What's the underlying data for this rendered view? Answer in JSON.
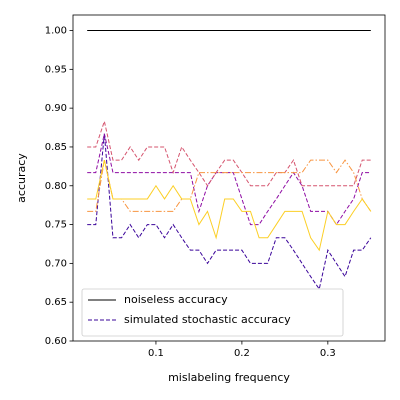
{
  "chart_data": {
    "type": "line",
    "x": [
      0.02,
      0.03,
      0.04,
      0.05,
      0.06,
      0.07,
      0.08,
      0.09,
      0.1,
      0.11,
      0.12,
      0.13,
      0.14,
      0.15,
      0.16,
      0.17,
      0.18,
      0.19,
      0.2,
      0.21,
      0.22,
      0.23,
      0.24,
      0.25,
      0.26,
      0.27,
      0.28,
      0.29,
      0.3,
      0.31,
      0.32,
      0.33,
      0.34,
      0.35
    ],
    "series": [
      {
        "name": "noiseless accuracy",
        "color": "#000000",
        "linestyle": "solid",
        "values": [
          1,
          1,
          1,
          1,
          1,
          1,
          1,
          1,
          1,
          1,
          1,
          1,
          1,
          1,
          1,
          1,
          1,
          1,
          1,
          1,
          1,
          1,
          1,
          1,
          1,
          1,
          1,
          1,
          1,
          1,
          1,
          1,
          1,
          1
        ]
      },
      {
        "name": "simulated stochastic accuracy",
        "color": "#3a049a",
        "linestyle": "dashed",
        "values": [
          0.75,
          0.75,
          0.867,
          0.733,
          0.733,
          0.75,
          0.733,
          0.75,
          0.75,
          0.733,
          0.75,
          0.733,
          0.717,
          0.717,
          0.7,
          0.717,
          0.717,
          0.717,
          0.717,
          0.7,
          0.7,
          0.7,
          0.733,
          0.733,
          0.717,
          0.7,
          0.683,
          0.667,
          0.717,
          0.7,
          0.683,
          0.717,
          0.717,
          0.733
        ]
      },
      {
        "color": "#8f0da4",
        "linestyle": "dashed",
        "values": [
          0.817,
          0.817,
          0.867,
          0.817,
          0.817,
          0.817,
          0.817,
          0.817,
          0.817,
          0.817,
          0.817,
          0.817,
          0.817,
          0.767,
          0.8,
          0.817,
          0.817,
          0.817,
          0.783,
          0.75,
          0.75,
          0.767,
          0.783,
          0.8,
          0.817,
          0.8,
          0.767,
          0.767,
          0.767,
          0.75,
          0.767,
          0.783,
          0.817,
          0.817
        ]
      },
      {
        "color": "#d5546e",
        "linestyle": "dashed",
        "values": [
          0.85,
          0.85,
          0.883,
          0.833,
          0.833,
          0.85,
          0.833,
          0.85,
          0.85,
          0.85,
          0.817,
          0.85,
          0.833,
          0.817,
          0.8,
          0.817,
          0.833,
          0.833,
          0.817,
          0.8,
          0.8,
          0.8,
          0.817,
          0.817,
          0.833,
          0.8,
          0.8,
          0.8,
          0.8,
          0.8,
          0.8,
          0.8,
          0.833,
          0.833
        ]
      },
      {
        "color": "#f89540",
        "linestyle": "dashdot",
        "values": [
          0.767,
          0.767,
          0.833,
          0.783,
          0.783,
          0.767,
          0.767,
          0.767,
          0.767,
          0.767,
          0.767,
          0.783,
          0.783,
          0.817,
          0.817,
          0.817,
          0.817,
          0.817,
          0.817,
          0.817,
          0.817,
          0.817,
          0.817,
          0.817,
          0.817,
          0.817,
          0.833,
          0.833,
          0.833,
          0.817,
          0.833,
          0.817,
          0.783,
          0.767
        ]
      },
      {
        "color": "#fccf25",
        "linestyle": "solid",
        "values": [
          0.783,
          0.783,
          0.833,
          0.783,
          0.783,
          0.783,
          0.783,
          0.783,
          0.8,
          0.783,
          0.8,
          0.783,
          0.783,
          0.75,
          0.767,
          0.733,
          0.783,
          0.783,
          0.767,
          0.767,
          0.733,
          0.733,
          0.75,
          0.767,
          0.767,
          0.767,
          0.733,
          0.717,
          0.767,
          0.75,
          0.75,
          0.767,
          0.783,
          0.767
        ]
      }
    ],
    "xlabel": "mislabeling frequency",
    "ylabel": "accuracy",
    "xlim": [
      0.0035,
      0.3665
    ],
    "ylim": [
      0.6,
      1.02
    ],
    "xticks": [
      0.1,
      0.2,
      0.3
    ],
    "yticks": [
      {
        "value": 0.6,
        "label": "0.60"
      },
      {
        "value": 0.65,
        "label": "0.65"
      },
      {
        "value": 0.7,
        "label": "0.70"
      },
      {
        "value": 0.75,
        "label": "0.75"
      },
      {
        "value": 0.8,
        "label": "0.80"
      },
      {
        "value": 0.85,
        "label": "0.85"
      },
      {
        "value": 0.9,
        "label": "0.90"
      },
      {
        "value": 0.95,
        "label": "0.95"
      },
      {
        "value": 1,
        "label": "1.00"
      }
    ],
    "legend": "lower left"
  }
}
